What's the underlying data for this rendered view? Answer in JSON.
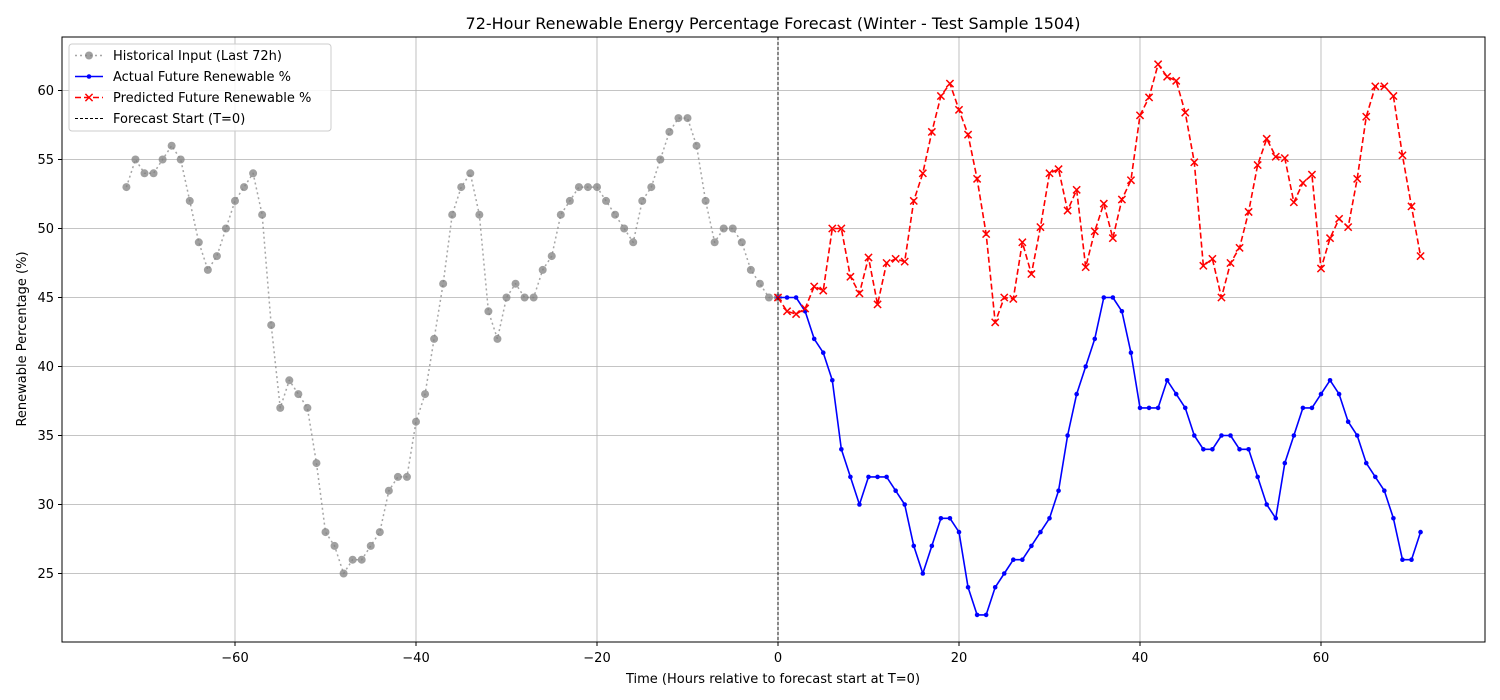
{
  "chart_data": {
    "type": "line",
    "title": "72-Hour Renewable Energy Percentage Forecast (Winter - Test Sample 1504)",
    "xlabel": "Time (Hours relative to forecast start at T=0)",
    "ylabel": "Renewable Percentage (%)",
    "xlim": [
      -80,
      78
    ],
    "ylim": [
      20,
      64
    ],
    "xticks": [
      -60,
      -40,
      -20,
      0,
      20,
      40,
      60
    ],
    "yticks": [
      25,
      30,
      35,
      40,
      45,
      50,
      55,
      60
    ],
    "grid": true,
    "legend_position": "top-left",
    "series": [
      {
        "name": "Historical Input (Last 72h)",
        "color": "#808080",
        "style": "dotted",
        "marker": "circle",
        "x": [
          -72,
          -71,
          -70,
          -69,
          -68,
          -67,
          -66,
          -65,
          -64,
          -63,
          -62,
          -61,
          -60,
          -59,
          -58,
          -57,
          -56,
          -55,
          -54,
          -53,
          -52,
          -51,
          -50,
          -49,
          -48,
          -47,
          -46,
          -45,
          -44,
          -43,
          -42,
          -41,
          -40,
          -39,
          -38,
          -37,
          -36,
          -35,
          -34,
          -33,
          -32,
          -31,
          -30,
          -29,
          -28,
          -27,
          -26,
          -25,
          -24,
          -23,
          -22,
          -21,
          -20,
          -19,
          -18,
          -17,
          -16,
          -15,
          -14,
          -13,
          -12,
          -11,
          -10,
          -9,
          -8,
          -7,
          -6,
          -5,
          -4,
          -3,
          -2,
          -1,
          0
        ],
        "y": [
          53,
          55,
          54,
          54,
          55,
          56,
          55,
          52,
          49,
          47,
          48,
          50,
          52,
          53,
          54,
          51,
          43,
          37,
          39,
          38,
          37,
          33,
          28,
          27,
          25,
          26,
          26,
          27,
          28,
          31,
          32,
          32,
          36,
          38,
          42,
          46,
          51,
          53,
          54,
          51,
          44,
          42,
          45,
          46,
          45,
          45,
          47,
          48,
          51,
          52,
          53,
          53,
          53,
          52,
          51,
          50,
          49,
          52,
          53,
          55,
          57,
          58,
          58,
          56,
          52,
          49,
          50,
          50,
          49,
          47,
          46,
          45,
          45
        ]
      },
      {
        "name": "Actual Future Renewable %",
        "color": "#0000ff",
        "style": "solid",
        "marker": "dot",
        "x": [
          0,
          1,
          2,
          3,
          4,
          5,
          6,
          7,
          8,
          9,
          10,
          11,
          12,
          13,
          14,
          15,
          16,
          17,
          18,
          19,
          20,
          21,
          22,
          23,
          24,
          25,
          26,
          27,
          28,
          29,
          30,
          31,
          32,
          33,
          34,
          35,
          36,
          37,
          38,
          39,
          40,
          41,
          42,
          43,
          44,
          45,
          46,
          47,
          48,
          49,
          50,
          51,
          52,
          53,
          54,
          55,
          56,
          57,
          58,
          59,
          60,
          61,
          62,
          63,
          64,
          65,
          66,
          67,
          68,
          69,
          70,
          71
        ],
        "y": [
          45,
          45,
          45,
          44,
          42,
          41,
          39,
          34,
          32,
          30,
          32,
          32,
          32,
          31,
          30,
          27,
          25,
          27,
          29,
          29,
          28,
          24,
          22,
          22,
          24,
          25,
          26,
          26,
          27,
          28,
          29,
          31,
          35,
          38,
          40,
          42,
          45,
          45,
          44,
          41,
          37,
          37,
          37,
          39,
          38,
          37,
          35,
          34,
          34,
          35,
          35,
          34,
          34,
          32,
          30,
          29,
          33,
          35,
          37,
          37,
          38,
          39,
          38,
          36,
          35,
          33,
          32,
          31,
          29,
          26,
          26,
          28
        ]
      },
      {
        "name": "Predicted Future Renewable %",
        "color": "#ff0000",
        "style": "dashed",
        "marker": "x",
        "x": [
          0,
          1,
          2,
          3,
          4,
          5,
          6,
          7,
          8,
          9,
          10,
          11,
          12,
          13,
          14,
          15,
          16,
          17,
          18,
          19,
          20,
          21,
          22,
          23,
          24,
          25,
          26,
          27,
          28,
          29,
          30,
          31,
          32,
          33,
          34,
          35,
          36,
          37,
          38,
          39,
          40,
          41,
          42,
          43,
          44,
          45,
          46,
          47,
          48,
          49,
          50,
          51,
          52,
          53,
          54,
          55,
          56,
          57,
          58,
          59,
          60,
          61,
          62,
          63,
          64,
          65,
          66,
          67,
          68,
          69,
          70,
          71
        ],
        "y": [
          45,
          44,
          43.8,
          44.2,
          45.8,
          45.5,
          50,
          50,
          46.5,
          45.3,
          47.9,
          44.5,
          47.5,
          47.8,
          47.6,
          52,
          54,
          57,
          59.6,
          60.5,
          58.6,
          56.8,
          53.6,
          49.6,
          43.2,
          45,
          44.9,
          49,
          46.7,
          50.1,
          54,
          54.3,
          51.3,
          52.8,
          47.2,
          49.8,
          51.8,
          49.3,
          52.1,
          53.5,
          58.2,
          59.5,
          61.9,
          61,
          60.7,
          58.4,
          54.8,
          47.3,
          47.8,
          45,
          47.5,
          48.6,
          51.2,
          54.6,
          56.5,
          55.2,
          55.1,
          51.9,
          53.3,
          53.9,
          47.1,
          49.3,
          50.7,
          50.1,
          53.6,
          58.1,
          60.3,
          60.3,
          59.6,
          55.3,
          51.6,
          48
        ]
      }
    ],
    "vline": {
      "x": 0,
      "name": "Forecast Start (T=0)",
      "color": "#000000",
      "style": "dashed"
    }
  }
}
